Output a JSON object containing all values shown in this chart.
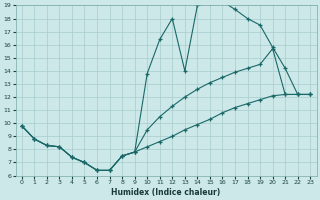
{
  "xlabel": "Humidex (Indice chaleur)",
  "xlim": [
    -0.5,
    23.5
  ],
  "ylim": [
    6,
    19
  ],
  "xticks": [
    0,
    1,
    2,
    3,
    4,
    5,
    6,
    7,
    8,
    9,
    10,
    11,
    12,
    13,
    14,
    15,
    16,
    17,
    18,
    19,
    20,
    21,
    22,
    23
  ],
  "yticks": [
    6,
    7,
    8,
    9,
    10,
    11,
    12,
    13,
    14,
    15,
    16,
    17,
    18,
    19
  ],
  "bg_color": "#cce8e8",
  "grid_color": "#a8cccc",
  "line_color": "#1a6868",
  "upper_x": [
    0,
    1,
    2,
    3,
    4,
    5,
    6,
    7,
    8,
    9,
    10,
    11,
    12,
    13,
    14,
    15,
    16,
    17,
    18,
    19,
    20,
    21,
    22,
    23
  ],
  "upper_y": [
    9.8,
    8.8,
    8.3,
    8.2,
    7.4,
    7.0,
    6.4,
    6.4,
    7.5,
    7.8,
    13.8,
    16.4,
    18.0,
    14.0,
    19.0,
    19.2,
    19.3,
    18.7,
    18.0,
    17.5,
    15.8,
    14.2,
    12.2,
    12.2
  ],
  "lower_x": [
    0,
    1,
    2,
    3,
    4,
    5,
    6,
    7,
    8,
    9,
    10,
    11,
    12,
    13,
    14,
    15,
    16,
    17,
    18,
    19,
    20,
    21,
    22,
    23
  ],
  "lower_y": [
    9.8,
    8.8,
    8.3,
    8.2,
    7.4,
    7.0,
    6.4,
    6.4,
    7.5,
    7.8,
    8.2,
    8.6,
    9.0,
    9.5,
    9.9,
    10.3,
    10.8,
    11.2,
    11.5,
    11.8,
    12.1,
    12.2,
    12.2,
    12.2
  ],
  "mid_x": [
    0,
    1,
    2,
    3,
    4,
    5,
    6,
    7,
    8,
    9,
    10,
    11,
    12,
    13,
    14,
    15,
    16,
    17,
    18,
    19,
    20,
    21,
    22,
    23
  ],
  "mid_y": [
    9.8,
    8.8,
    8.3,
    8.2,
    7.4,
    7.0,
    6.4,
    6.4,
    7.5,
    7.8,
    9.5,
    10.5,
    11.3,
    12.0,
    12.6,
    13.1,
    13.5,
    13.9,
    14.2,
    14.5,
    15.7,
    12.2,
    12.2,
    12.2
  ]
}
